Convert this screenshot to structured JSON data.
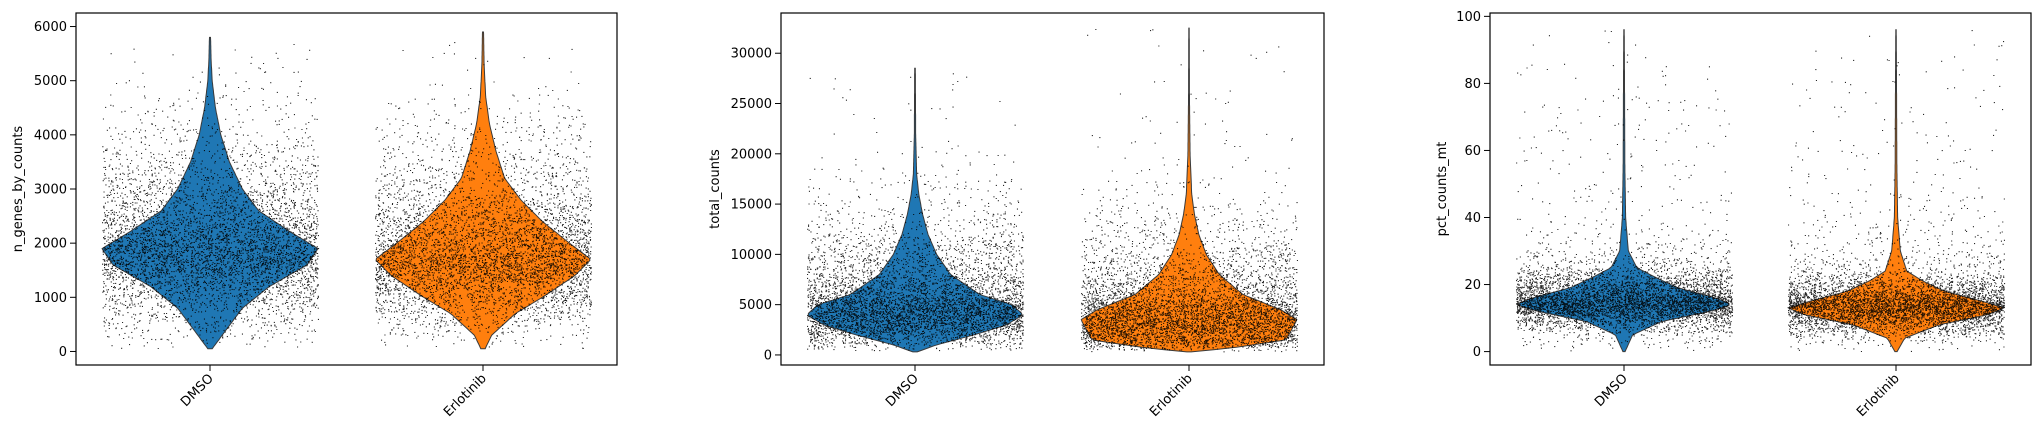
{
  "figure": {
    "background": "#ffffff"
  },
  "colors": {
    "DMSO": "#1f77b4",
    "Erlotinib": "#ff7f0e",
    "points": "#000000",
    "frame": "#000000"
  },
  "chart_data": [
    {
      "type": "violin",
      "ylabel": "n_genes_by_counts",
      "categories": [
        "DMSO",
        "Erlotinib"
      ],
      "ylim": [
        -250,
        6250
      ],
      "yticks": [
        0,
        1000,
        2000,
        3000,
        4000,
        5000,
        6000
      ],
      "ytick_labels": [
        "0",
        "1000",
        "2000",
        "3000",
        "4000",
        "5000",
        "6000"
      ],
      "grid": false,
      "series": [
        {
          "name": "DMSO",
          "min": 50,
          "max": 5800,
          "median": 1950,
          "density": [
            [
              50,
              0.02
            ],
            [
              400,
              0.15
            ],
            [
              800,
              0.3
            ],
            [
              1200,
              0.55
            ],
            [
              1600,
              0.9
            ],
            [
              1900,
              1.0
            ],
            [
              2200,
              0.75
            ],
            [
              2600,
              0.45
            ],
            [
              3000,
              0.3
            ],
            [
              3500,
              0.18
            ],
            [
              4000,
              0.1
            ],
            [
              4500,
              0.05
            ],
            [
              5000,
              0.02
            ],
            [
              5400,
              0.01
            ],
            [
              5800,
              0.005
            ]
          ]
        },
        {
          "name": "Erlotinib",
          "min": 50,
          "max": 5900,
          "median": 1700,
          "density": [
            [
              50,
              0.02
            ],
            [
              300,
              0.08
            ],
            [
              700,
              0.3
            ],
            [
              1000,
              0.55
            ],
            [
              1400,
              0.85
            ],
            [
              1700,
              1.0
            ],
            [
              2000,
              0.8
            ],
            [
              2400,
              0.55
            ],
            [
              2800,
              0.35
            ],
            [
              3200,
              0.2
            ],
            [
              3700,
              0.12
            ],
            [
              4200,
              0.06
            ],
            [
              4700,
              0.025
            ],
            [
              5300,
              0.01
            ],
            [
              5900,
              0.005
            ]
          ]
        }
      ]
    },
    {
      "type": "violin",
      "ylabel": "total_counts",
      "categories": [
        "DMSO",
        "Erlotinib"
      ],
      "ylim": [
        -1000,
        34000
      ],
      "yticks": [
        0,
        5000,
        10000,
        15000,
        20000,
        25000,
        30000
      ],
      "ytick_labels": [
        "0",
        "5000",
        "10000",
        "15000",
        "20000",
        "25000",
        "30000"
      ],
      "grid": false,
      "series": [
        {
          "name": "DMSO",
          "min": 300,
          "max": 28500,
          "median": 4500,
          "density": [
            [
              300,
              0.02
            ],
            [
              1000,
              0.2
            ],
            [
              2000,
              0.55
            ],
            [
              3000,
              0.85
            ],
            [
              4000,
              1.0
            ],
            [
              5000,
              0.9
            ],
            [
              6000,
              0.6
            ],
            [
              8000,
              0.33
            ],
            [
              10000,
              0.2
            ],
            [
              12000,
              0.12
            ],
            [
              14000,
              0.07
            ],
            [
              16000,
              0.035
            ],
            [
              18000,
              0.015
            ],
            [
              22000,
              0.006
            ],
            [
              28500,
              0.003
            ]
          ]
        },
        {
          "name": "Erlotinib",
          "min": 300,
          "max": 32500,
          "median": 4000,
          "density": [
            [
              300,
              0.02
            ],
            [
              700,
              0.4
            ],
            [
              1500,
              0.9
            ],
            [
              2500,
              0.95
            ],
            [
              3500,
              1.0
            ],
            [
              4500,
              0.85
            ],
            [
              6000,
              0.5
            ],
            [
              8000,
              0.28
            ],
            [
              10000,
              0.16
            ],
            [
              12000,
              0.09
            ],
            [
              14000,
              0.05
            ],
            [
              16000,
              0.025
            ],
            [
              20000,
              0.01
            ],
            [
              26000,
              0.004
            ],
            [
              32500,
              0.002
            ]
          ]
        }
      ]
    },
    {
      "type": "violin",
      "ylabel": "pct_counts_mt",
      "categories": [
        "DMSO",
        "Erlotinib"
      ],
      "ylim": [
        -4,
        101
      ],
      "yticks": [
        0,
        20,
        40,
        60,
        80,
        100
      ],
      "ytick_labels": [
        "0",
        "20",
        "40",
        "60",
        "80",
        "100"
      ],
      "grid": false,
      "series": [
        {
          "name": "DMSO",
          "min": 0,
          "max": 96,
          "median": 14,
          "density": [
            [
              0,
              0.01
            ],
            [
              5,
              0.08
            ],
            [
              9,
              0.35
            ],
            [
              12,
              0.8
            ],
            [
              14,
              1.0
            ],
            [
              16,
              0.85
            ],
            [
              19,
              0.5
            ],
            [
              22,
              0.3
            ],
            [
              25,
              0.12
            ],
            [
              30,
              0.04
            ],
            [
              40,
              0.015
            ],
            [
              55,
              0.008
            ],
            [
              70,
              0.006
            ],
            [
              85,
              0.004
            ],
            [
              96,
              0.002
            ]
          ]
        },
        {
          "name": "Erlotinib",
          "min": 0,
          "max": 96,
          "median": 12,
          "density": [
            [
              0,
              0.01
            ],
            [
              4,
              0.08
            ],
            [
              8,
              0.4
            ],
            [
              11,
              0.85
            ],
            [
              13,
              1.0
            ],
            [
              15,
              0.8
            ],
            [
              18,
              0.45
            ],
            [
              21,
              0.25
            ],
            [
              24,
              0.1
            ],
            [
              30,
              0.04
            ],
            [
              40,
              0.015
            ],
            [
              55,
              0.008
            ],
            [
              70,
              0.006
            ],
            [
              85,
              0.004
            ],
            [
              96,
              0.002
            ]
          ]
        }
      ]
    }
  ]
}
